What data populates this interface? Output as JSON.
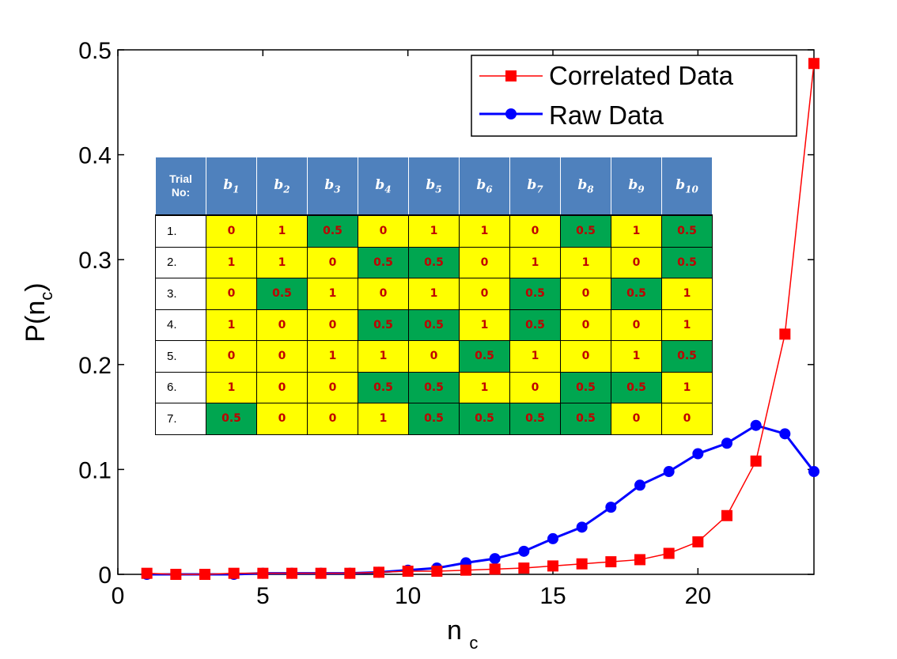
{
  "chart_data": {
    "type": "line",
    "xlabel": "n",
    "xlabel_sub": "c",
    "ylabel": "P(n",
    "ylabel_sub": "c",
    "ylabel_close": ")",
    "xlim": [
      0,
      24
    ],
    "ylim": [
      0,
      0.5
    ],
    "xticks": [
      0,
      5,
      10,
      15,
      20
    ],
    "xtick_labels": [
      "0",
      "5",
      "10",
      "15",
      "20"
    ],
    "yticks": [
      0,
      0.1,
      0.2,
      0.3,
      0.4,
      0.5
    ],
    "ytick_labels": [
      "0",
      "0.1",
      "0.2",
      "0.3",
      "0.4",
      "0.5"
    ],
    "legend_position": "top-right",
    "series": [
      {
        "name": "Correlated Data",
        "color": "#ff0000",
        "marker": "square",
        "x": [
          1,
          2,
          3,
          4,
          5,
          6,
          7,
          8,
          9,
          10,
          11,
          12,
          13,
          14,
          15,
          16,
          17,
          18,
          19,
          20,
          21,
          22,
          23,
          24
        ],
        "values": [
          0.001,
          0,
          0,
          0.001,
          0.001,
          0.001,
          0.001,
          0.001,
          0.002,
          0.003,
          0.003,
          0.004,
          0.005,
          0.006,
          0.008,
          0.01,
          0.012,
          0.014,
          0.02,
          0.031,
          0.056,
          0.108,
          0.229,
          0.487
        ]
      },
      {
        "name": "Raw Data",
        "color": "#0000ff",
        "marker": "circle",
        "x": [
          1,
          2,
          3,
          4,
          5,
          6,
          7,
          8,
          9,
          10,
          11,
          12,
          13,
          14,
          15,
          16,
          17,
          18,
          19,
          20,
          21,
          22,
          23,
          24
        ],
        "values": [
          0,
          0,
          0,
          0,
          0.001,
          0.001,
          0.001,
          0.001,
          0.002,
          0.004,
          0.006,
          0.011,
          0.015,
          0.022,
          0.034,
          0.045,
          0.064,
          0.085,
          0.098,
          0.115,
          0.125,
          0.142,
          0.134,
          0.098
        ]
      }
    ]
  },
  "table": {
    "header_first": [
      "Trial",
      "No:"
    ],
    "headers": [
      {
        "base": "b",
        "sub": "1"
      },
      {
        "base": "b",
        "sub": "2"
      },
      {
        "base": "b",
        "sub": "3"
      },
      {
        "base": "b",
        "sub": "4"
      },
      {
        "base": "b",
        "sub": "5"
      },
      {
        "base": "b",
        "sub": "6"
      },
      {
        "base": "b",
        "sub": "7"
      },
      {
        "base": "b",
        "sub": "8"
      },
      {
        "base": "b",
        "sub": "9"
      },
      {
        "base": "b",
        "sub": "10"
      }
    ],
    "highlight_colors": {
      "yellow": "#ffff00",
      "green": "#00a650"
    },
    "rows": [
      {
        "label": "1.",
        "cells": [
          "0",
          "1",
          "0.5",
          "0",
          "1",
          "1",
          "0",
          "0.5",
          "1",
          "0.5"
        ]
      },
      {
        "label": "2.",
        "cells": [
          "1",
          "1",
          "0",
          "0.5",
          "0.5",
          "0",
          "1",
          "1",
          "0",
          "0.5"
        ]
      },
      {
        "label": "3.",
        "cells": [
          "0",
          "0.5",
          "1",
          "0",
          "1",
          "0",
          "0.5",
          "0",
          "0.5",
          "1"
        ]
      },
      {
        "label": "4.",
        "cells": [
          "1",
          "0",
          "0",
          "0.5",
          "0.5",
          "1",
          "0.5",
          "0",
          "0",
          "1"
        ]
      },
      {
        "label": "5.",
        "cells": [
          "0",
          "0",
          "1",
          "1",
          "0",
          "0.5",
          "1",
          "0",
          "1",
          "0.5"
        ]
      },
      {
        "label": "6.",
        "cells": [
          "1",
          "0",
          "0",
          "0.5",
          "0.5",
          "1",
          "0",
          "0.5",
          "0.5",
          "1"
        ]
      },
      {
        "label": "7.",
        "cells": [
          "0.5",
          "0",
          "0",
          "1",
          "0.5",
          "0.5",
          "0.5",
          "0.5",
          "0",
          "0"
        ]
      }
    ]
  }
}
